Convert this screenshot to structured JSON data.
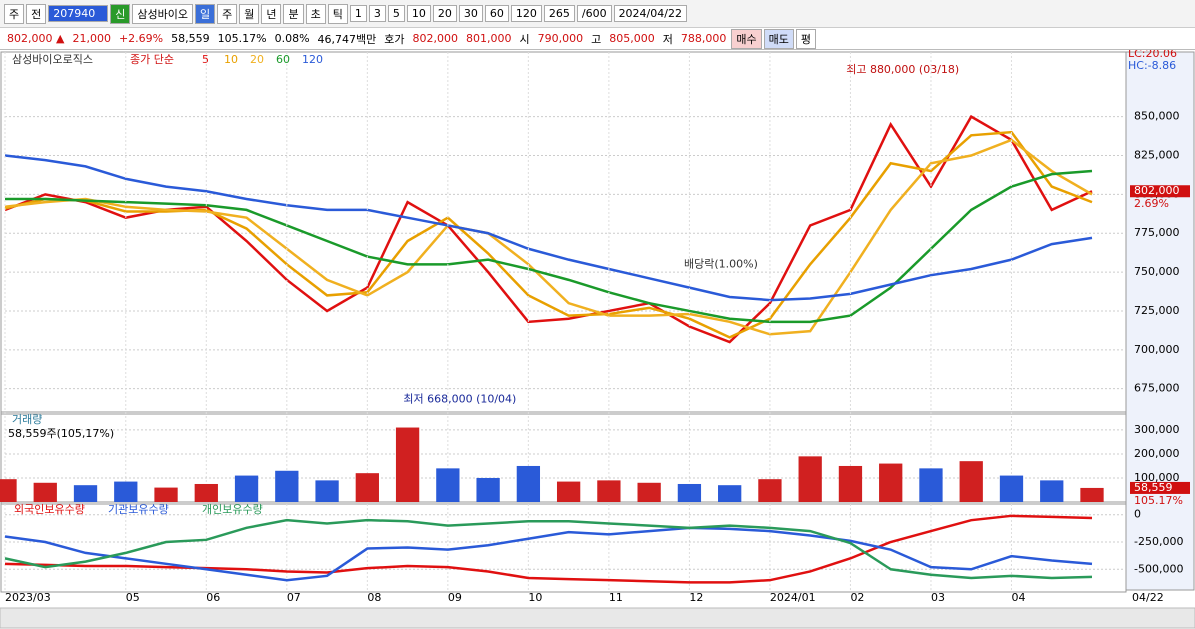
{
  "toolbar": {
    "items": [
      "주",
      "전",
      "207940",
      "신",
      "삼성바이오",
      "일",
      "주",
      "월",
      "년",
      "분",
      "초",
      "틱",
      "1",
      "3",
      "5",
      "10",
      "20",
      "30",
      "60",
      "120",
      "265",
      "/600",
      "2024/04/22"
    ]
  },
  "quote_bar": {
    "items": [
      "802,000 ▲",
      "21,000",
      "+2.69%",
      "58,559",
      "105.17%",
      "0.08%",
      "46,747백만",
      "호가",
      "802,000",
      "801,000",
      "시",
      "790,000",
      "고",
      "805,000",
      "저",
      "788,000"
    ],
    "buttons": [
      "매수",
      "매도",
      "평"
    ]
  },
  "chart_data": [
    {
      "type": "line",
      "title": "삼성바이오로직스",
      "legend_title": "종가 단순",
      "categories": [
        "2023/03",
        null,
        null,
        "05",
        null,
        "06",
        null,
        "07",
        null,
        "08",
        null,
        "09",
        null,
        "10",
        null,
        "11",
        null,
        "12",
        null,
        "2024/01",
        null,
        "02",
        null,
        "03",
        null,
        "04",
        null,
        null
      ],
      "x_end_label": "04/22",
      "series": [
        {
          "name": "5",
          "color": "#e01010",
          "values": [
            790000,
            800000,
            795000,
            785000,
            790000,
            792000,
            770000,
            745000,
            725000,
            740000,
            795000,
            780000,
            750000,
            718000,
            720000,
            725000,
            730000,
            715000,
            705000,
            730000,
            780000,
            790000,
            845000,
            805000,
            850000,
            835000,
            790000,
            802000
          ]
        },
        {
          "name": "10",
          "color": "#e8a000",
          "values": [
            791000,
            797000,
            796000,
            789000,
            789000,
            790000,
            778000,
            755000,
            735000,
            737000,
            770000,
            785000,
            762000,
            735000,
            722000,
            723000,
            727000,
            720000,
            708000,
            720000,
            755000,
            785000,
            820000,
            815000,
            838000,
            840000,
            805000,
            795000
          ]
        },
        {
          "name": "20",
          "color": "#f0b020",
          "values": [
            792000,
            795000,
            797000,
            792000,
            790000,
            789000,
            785000,
            765000,
            745000,
            735000,
            750000,
            780000,
            775000,
            755000,
            730000,
            722000,
            722000,
            723000,
            718000,
            710000,
            712000,
            750000,
            790000,
            820000,
            825000,
            835000,
            815000,
            800000
          ]
        },
        {
          "name": "60",
          "color": "#1a9a2a",
          "values": [
            797000,
            797000,
            796000,
            795000,
            794000,
            793000,
            790000,
            780000,
            770000,
            760000,
            755000,
            755000,
            758000,
            752000,
            745000,
            737000,
            730000,
            725000,
            720000,
            718000,
            718000,
            722000,
            740000,
            765000,
            790000,
            805000,
            813000,
            815000
          ]
        },
        {
          "name": "120",
          "color": "#2a5ad8",
          "values": [
            825000,
            822000,
            818000,
            810000,
            805000,
            802000,
            797000,
            793000,
            790000,
            790000,
            785000,
            780000,
            775000,
            765000,
            758000,
            752000,
            746000,
            740000,
            734000,
            732000,
            733000,
            736000,
            742000,
            748000,
            752000,
            758000,
            768000,
            772000
          ]
        }
      ],
      "ylim": [
        660000,
        889000
      ],
      "yticks": [
        {
          "value": 675000,
          "label": "675,000"
        },
        {
          "value": 700000,
          "label": "700,000"
        },
        {
          "value": 725000,
          "label": "725,000"
        },
        {
          "value": 750000,
          "label": "750,000"
        },
        {
          "value": 775000,
          "label": "775,000"
        },
        {
          "value": 800000,
          "label": "800,000"
        },
        {
          "value": 825000,
          "label": "825,000"
        },
        {
          "value": 850000,
          "label": "850,000"
        }
      ],
      "grid": true,
      "current": {
        "value": 802000,
        "label": "802,000",
        "change": "2.69%"
      },
      "corner": [
        "LC:20.06",
        "HC:-8.86"
      ],
      "annotations": [
        {
          "text": "최고 880,000 (03/18)",
          "index": 24,
          "value": 880000
        },
        {
          "text": "최저 668,000 (10/04)",
          "index": 13,
          "value": 668000
        },
        {
          "text": "배당락(1.00%)",
          "index": 19,
          "value": 755000
        }
      ]
    },
    {
      "type": "bar",
      "title": "거래량",
      "subtitle": "58,559주(105,17%)",
      "values": [
        95000,
        80000,
        70000,
        85000,
        60000,
        75000,
        110000,
        130000,
        90000,
        120000,
        310000,
        140000,
        100000,
        150000,
        85000,
        90000,
        80000,
        75000,
        70000,
        95000,
        190000,
        150000,
        160000,
        140000,
        170000,
        110000,
        90000,
        58559
      ],
      "colors": [
        "#d02020",
        "#d02020",
        "#2a5ad8",
        "#2a5ad8",
        "#d02020",
        "#d02020",
        "#2a5ad8",
        "#2a5ad8",
        "#2a5ad8",
        "#d02020",
        "#d02020",
        "#2a5ad8",
        "#2a5ad8",
        "#2a5ad8",
        "#d02020",
        "#d02020",
        "#d02020",
        "#2a5ad8",
        "#2a5ad8",
        "#d02020",
        "#d02020",
        "#d02020",
        "#d02020",
        "#2a5ad8",
        "#d02020",
        "#2a5ad8",
        "#2a5ad8",
        "#d02020"
      ],
      "ylim": [
        0,
        358000
      ],
      "yticks": [
        {
          "value": 100000,
          "label": "100,000"
        },
        {
          "value": 200000,
          "label": "200,000"
        },
        {
          "value": 300000,
          "label": "300,000"
        }
      ],
      "current": {
        "value": 58559,
        "label": "58,559",
        "change": "105.17%"
      }
    },
    {
      "type": "line",
      "series": [
        {
          "name": "외국인보유수량",
          "color": "#e01010",
          "values": [
            -450000,
            -460000,
            -470000,
            -470000,
            -480000,
            -490000,
            -500000,
            -520000,
            -530000,
            -490000,
            -470000,
            -480000,
            -520000,
            -580000,
            -590000,
            -600000,
            -610000,
            -620000,
            -620000,
            -600000,
            -520000,
            -400000,
            -250000,
            -150000,
            -50000,
            -10000,
            -20000,
            -30000
          ]
        },
        {
          "name": "기관보유수량",
          "color": "#2a5ad8",
          "values": [
            -200000,
            -250000,
            -350000,
            -400000,
            -450000,
            -500000,
            -550000,
            -600000,
            -560000,
            -310000,
            -300000,
            -320000,
            -280000,
            -220000,
            -160000,
            -180000,
            -150000,
            -120000,
            -130000,
            -150000,
            -190000,
            -240000,
            -320000,
            -480000,
            -500000,
            -380000,
            -420000,
            -450000
          ]
        },
        {
          "name": "개인보유수량",
          "color": "#2a9a5a",
          "values": [
            -400000,
            -480000,
            -430000,
            -350000,
            -250000,
            -230000,
            -120000,
            -50000,
            -80000,
            -50000,
            -60000,
            -100000,
            -80000,
            -60000,
            -60000,
            -80000,
            -100000,
            -120000,
            -100000,
            -120000,
            -150000,
            -260000,
            -500000,
            -550000,
            -580000,
            -560000,
            -580000,
            -570000
          ]
        }
      ],
      "ylim": [
        -690000,
        80000
      ],
      "yticks": [
        0,
        {
          "value": -250000,
          "label": "-250,000"
        },
        {
          "value": -500000,
          "label": "-500,000"
        }
      ]
    }
  ]
}
